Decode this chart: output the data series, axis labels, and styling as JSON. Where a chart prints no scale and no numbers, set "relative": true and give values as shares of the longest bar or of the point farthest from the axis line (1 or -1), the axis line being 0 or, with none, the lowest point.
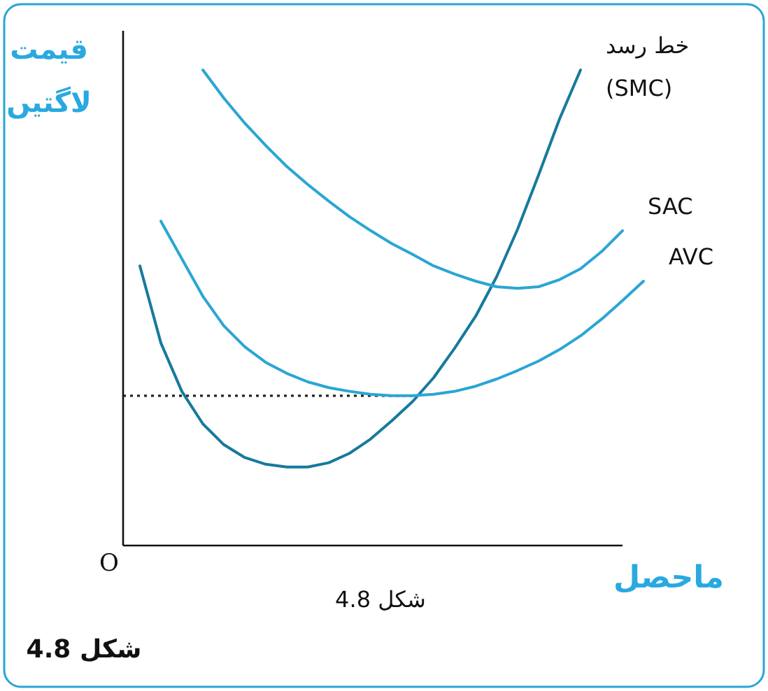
{
  "chart_data": {
    "type": "line",
    "relative": true,
    "title": "شکل 4.8",
    "xlabel": "ماحصل",
    "ylabel": "قیمت\nلاگتیں",
    "legend": false,
    "marker": "none",
    "line_style": "solid",
    "categories": [
      null,
      null,
      null,
      null,
      null,
      null,
      null,
      null,
      null,
      null,
      null,
      null,
      null,
      null,
      null,
      null,
      null,
      null,
      null,
      null,
      null,
      null,
      null,
      null,
      null,
      null
    ],
    "series": [
      {
        "name": "خط رسد\n(SMC)",
        "color": "#177a9c",
        "values": [
          0.588,
          0.426,
          0.324,
          0.256,
          0.212,
          0.185,
          0.171,
          0.165,
          0.165,
          0.174,
          0.194,
          0.224,
          0.262,
          0.303,
          0.353,
          0.415,
          0.482,
          0.565,
          0.665,
          0.779,
          0.897,
          1.0,
          null,
          null,
          null,
          null
        ]
      },
      {
        "name": "SAC",
        "color": "#2aa6d4",
        "values": [
          null,
          null,
          null,
          1.0,
          0.941,
          0.888,
          0.841,
          0.797,
          0.759,
          0.724,
          0.691,
          0.662,
          0.635,
          0.612,
          0.588,
          0.571,
          0.556,
          0.544,
          0.541,
          0.544,
          0.559,
          0.582,
          0.618,
          0.662,
          null,
          null
        ]
      },
      {
        "name": "AVC",
        "color": "#2aa6d4",
        "values": [
          null,
          0.682,
          0.603,
          0.524,
          0.462,
          0.418,
          0.385,
          0.362,
          0.344,
          0.332,
          0.324,
          0.318,
          0.315,
          0.315,
          0.318,
          0.324,
          0.335,
          0.35,
          0.368,
          0.388,
          0.412,
          0.441,
          0.476,
          0.515,
          0.556,
          null
        ]
      }
    ],
    "ref_lines": [
      {
        "axis": "y",
        "value": 0.315,
        "color": "#222222",
        "line_style": "dotted"
      }
    ],
    "annotations": [
      "O",
      "شکل 4.8"
    ]
  }
}
